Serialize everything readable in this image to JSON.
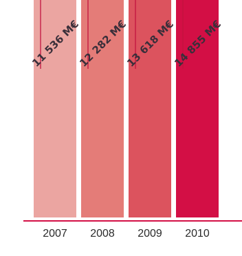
{
  "chart_data": {
    "type": "bar",
    "title": "",
    "xlabel": "",
    "ylabel": "",
    "categories": [
      "2007",
      "2008",
      "2009",
      "2010"
    ],
    "values": [
      11536,
      12282,
      13618,
      14855
    ],
    "value_labels": [
      "11 536 M€",
      "12 282 M€",
      "13 618 M€",
      "14 855 M€"
    ],
    "unit": "M€",
    "colors": [
      "#eba5a1",
      "#e47c78",
      "#dc535e",
      "#d30f45"
    ],
    "baseline_color": "#d30f45",
    "leader_color": "#c2133f",
    "grid": false,
    "legend": "none"
  }
}
